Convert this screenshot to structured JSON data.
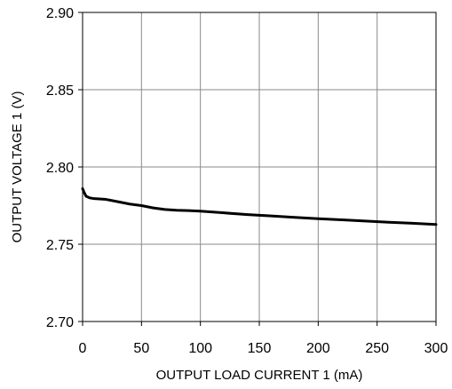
{
  "chart_data": {
    "type": "line",
    "title": "",
    "xlabel": "OUTPUT LOAD CURRENT 1 (mA)",
    "ylabel": "OUTPUT VOLTAGE 1 (V)",
    "xlim": [
      0,
      300
    ],
    "ylim": [
      2.7,
      2.9
    ],
    "x_ticks": [
      0,
      50,
      100,
      150,
      200,
      250,
      300
    ],
    "x_tick_labels": [
      "0",
      "50",
      "100",
      "150",
      "200",
      "250",
      "300"
    ],
    "y_ticks": [
      2.7,
      2.75,
      2.8,
      2.85,
      2.9
    ],
    "y_tick_labels": [
      "2.70",
      "2.75",
      "2.80",
      "2.85",
      "2.90"
    ],
    "grid": true,
    "line_color": "#000000",
    "series": [
      {
        "x": [
          0,
          1,
          3,
          6,
          10,
          20,
          30,
          40,
          50,
          60,
          70,
          80,
          90,
          100,
          120,
          140,
          160,
          180,
          200,
          220,
          240,
          260,
          280,
          300
        ],
        "y": [
          2.786,
          2.784,
          2.781,
          2.78,
          2.7795,
          2.779,
          2.7775,
          2.776,
          2.775,
          2.7735,
          2.7725,
          2.772,
          2.7718,
          2.7714,
          2.7703,
          2.7692,
          2.7683,
          2.7674,
          2.7665,
          2.7658,
          2.765,
          2.7642,
          2.7636,
          2.7628
        ]
      }
    ]
  }
}
